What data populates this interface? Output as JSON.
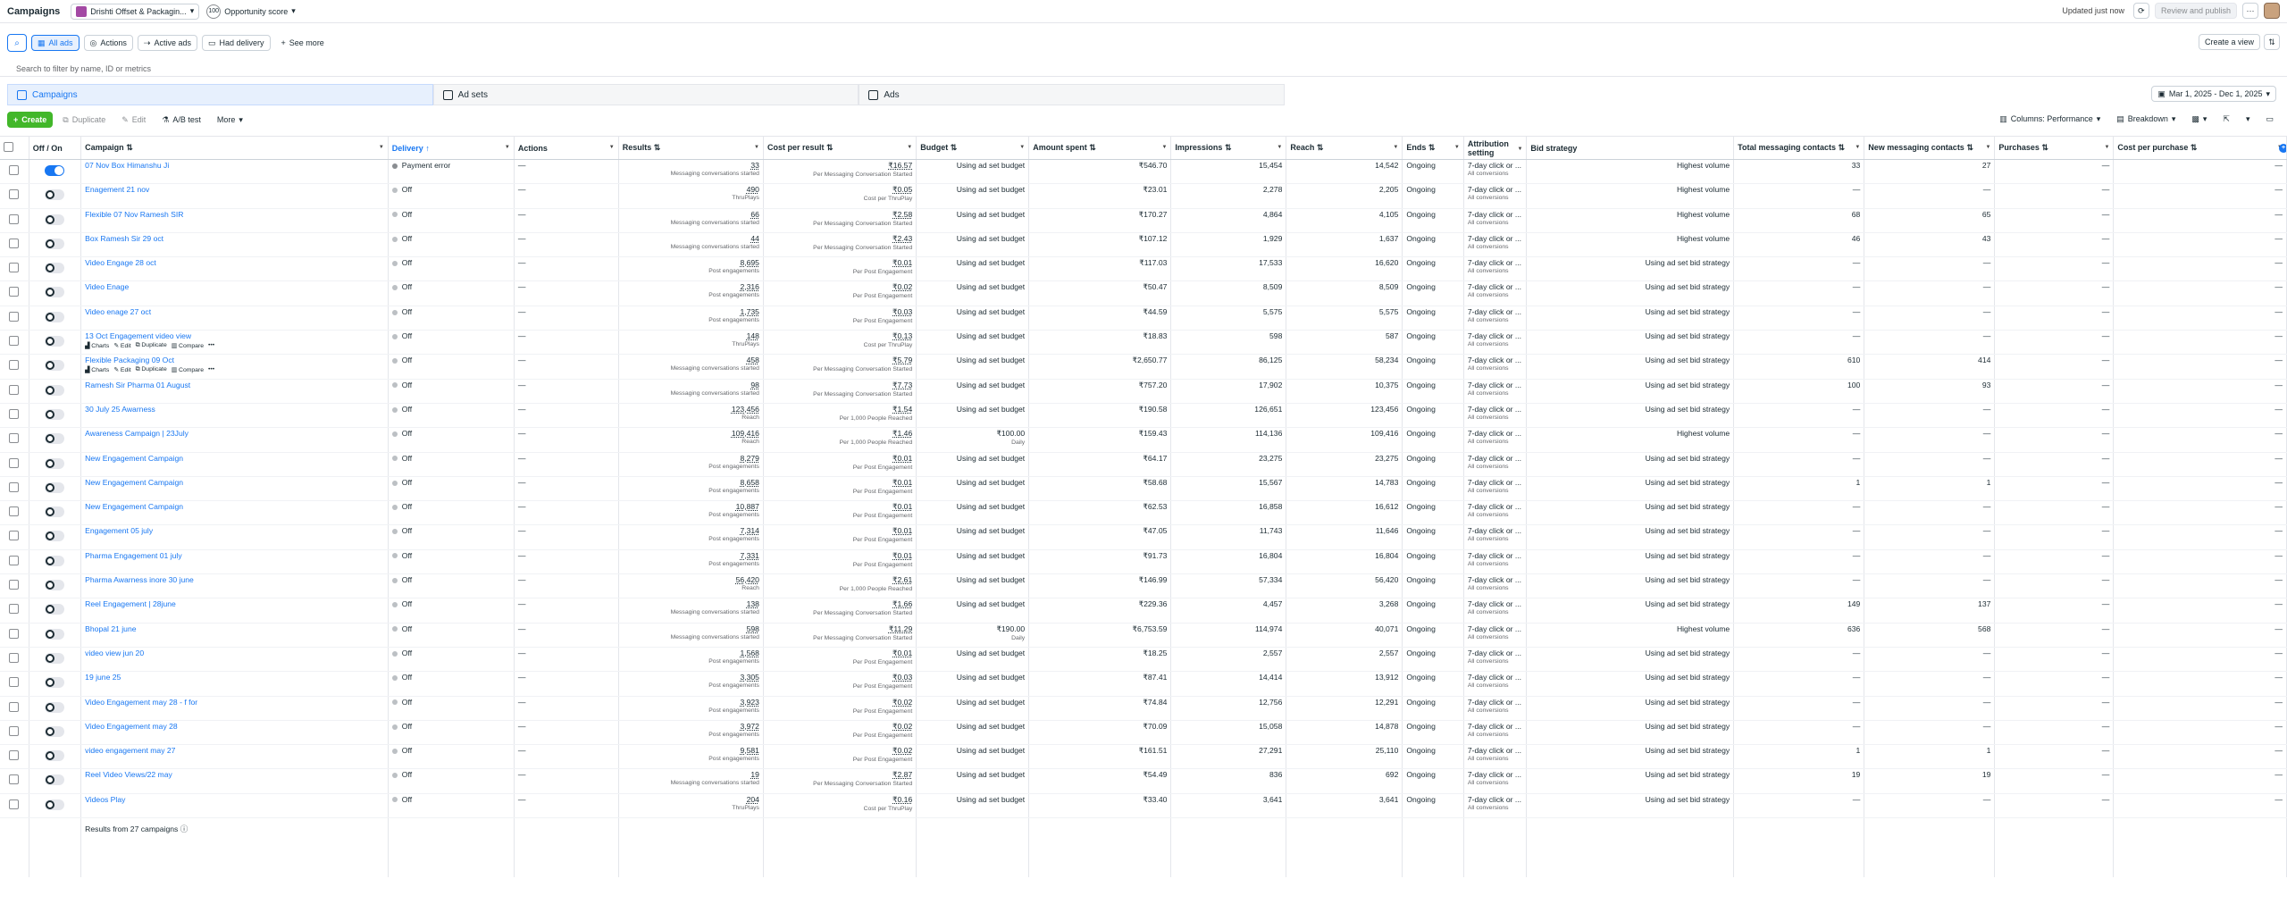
{
  "header": {
    "title": "Campaigns",
    "account_name": "Drishti Offset & Packagin...",
    "opportunity_score_value": "100",
    "opportunity_score_label": "Opportunity score",
    "updated": "Updated just now",
    "review_publish": "Review and publish",
    "more": "···"
  },
  "filters": {
    "all_ads": "All ads",
    "actions": "Actions",
    "active_ads": "Active ads",
    "had_delivery": "Had delivery",
    "see_more": "See more",
    "create_view": "Create a view",
    "search_placeholder": "Search to filter by name, ID or metrics"
  },
  "tabs": [
    {
      "label": "Campaigns"
    },
    {
      "label": "Ad sets"
    },
    {
      "label": "Ads"
    }
  ],
  "date_range": "Mar 1, 2025 - Dec 1, 2025",
  "toolbar": {
    "create": "Create",
    "duplicate": "Duplicate",
    "edit": "Edit",
    "ab_test": "A/B test",
    "more": "More",
    "columns": "Columns: Performance",
    "breakdown": "Breakdown"
  },
  "columns": [
    "Off / On",
    "Campaign",
    "Delivery",
    "Actions",
    "Results",
    "Cost per result",
    "Budget",
    "Amount spent",
    "Impressions",
    "Reach",
    "Ends",
    "Attribution setting",
    "Bid strategy",
    "Total messaging contacts",
    "New messaging contacts",
    "Purchases",
    "Cost per purchase"
  ],
  "row_actions": [
    "Charts",
    "Edit",
    "Duplicate",
    "Compare"
  ],
  "rows": [
    {
      "on": true,
      "name": "07 Nov Box Himanshu Ji",
      "delivery": "Payment error",
      "actions": "—",
      "results": "33",
      "results_sub": "Messaging conversations started",
      "cpr": "₹16.57",
      "cpr_sub": "Per Messaging Conversation Started",
      "budget": "Using ad set budget",
      "budget_sub": "",
      "spent": "₹546.70",
      "impr": "15,454",
      "reach": "14,542",
      "ends": "Ongoing",
      "attr": "7-day click or ...",
      "attr_sub": "All conversions",
      "bid": "Highest volume",
      "total_msg": "33",
      "new_msg": "27",
      "purchases": "—",
      "cpp": "—"
    },
    {
      "on": false,
      "name": "Enagement 21 nov",
      "delivery": "Off",
      "actions": "—",
      "results": "490",
      "results_sub": "ThruPlays",
      "cpr": "₹0.05",
      "cpr_sub": "Cost per ThruPlay",
      "budget": "Using ad set budget",
      "budget_sub": "",
      "spent": "₹23.01",
      "impr": "2,278",
      "reach": "2,205",
      "ends": "Ongoing",
      "attr": "7-day click or ...",
      "attr_sub": "All conversions",
      "bid": "Highest volume",
      "total_msg": "—",
      "new_msg": "—",
      "purchases": "—",
      "cpp": "—"
    },
    {
      "on": false,
      "name": "Flexible 07 Nov Ramesh SIR",
      "delivery": "Off",
      "actions": "—",
      "results": "66",
      "results_sub": "Messaging conversations started",
      "cpr": "₹2.58",
      "cpr_sub": "Per Messaging Conversation Started",
      "budget": "Using ad set budget",
      "budget_sub": "",
      "spent": "₹170.27",
      "impr": "4,864",
      "reach": "4,105",
      "ends": "Ongoing",
      "attr": "7-day click or ...",
      "attr_sub": "All conversions",
      "bid": "Highest volume",
      "total_msg": "68",
      "new_msg": "65",
      "purchases": "—",
      "cpp": "—"
    },
    {
      "on": false,
      "name": "Box Ramesh Sir 29 oct",
      "delivery": "Off",
      "actions": "—",
      "results": "44",
      "results_sub": "Messaging conversations started",
      "cpr": "₹2.43",
      "cpr_sub": "Per Messaging Conversation Started",
      "budget": "Using ad set budget",
      "budget_sub": "",
      "spent": "₹107.12",
      "impr": "1,929",
      "reach": "1,637",
      "ends": "Ongoing",
      "attr": "7-day click or ...",
      "attr_sub": "All conversions",
      "bid": "Highest volume",
      "total_msg": "46",
      "new_msg": "43",
      "purchases": "—",
      "cpp": "—"
    },
    {
      "on": false,
      "name": "Video Engage 28 oct",
      "delivery": "Off",
      "actions": "—",
      "results": "8,695",
      "results_sub": "Post engagements",
      "cpr": "₹0.01",
      "cpr_sub": "Per Post Engagement",
      "budget": "Using ad set budget",
      "budget_sub": "",
      "spent": "₹117.03",
      "impr": "17,533",
      "reach": "16,620",
      "ends": "Ongoing",
      "attr": "7-day click or ...",
      "attr_sub": "All conversions",
      "bid": "Using ad set bid strategy",
      "total_msg": "—",
      "new_msg": "—",
      "purchases": "—",
      "cpp": "—"
    },
    {
      "on": false,
      "name": "Video Enage",
      "delivery": "Off",
      "actions": "—",
      "results": "2,316",
      "results_sub": "Post engagements",
      "cpr": "₹0.02",
      "cpr_sub": "Per Post Engagement",
      "budget": "Using ad set budget",
      "budget_sub": "",
      "spent": "₹50.47",
      "impr": "8,509",
      "reach": "8,509",
      "ends": "Ongoing",
      "attr": "7-day click or ...",
      "attr_sub": "All conversions",
      "bid": "Using ad set bid strategy",
      "total_msg": "—",
      "new_msg": "—",
      "purchases": "—",
      "cpp": "—"
    },
    {
      "on": false,
      "name": "Video enage 27 oct",
      "delivery": "Off",
      "actions": "—",
      "results": "1,735",
      "results_sub": "Post engagements",
      "cpr": "₹0.03",
      "cpr_sub": "Per Post Engagement",
      "budget": "Using ad set budget",
      "budget_sub": "",
      "spent": "₹44.59",
      "impr": "5,575",
      "reach": "5,575",
      "ends": "Ongoing",
      "attr": "7-day click or ...",
      "attr_sub": "All conversions",
      "bid": "Using ad set bid strategy",
      "total_msg": "—",
      "new_msg": "—",
      "purchases": "—",
      "cpp": "—"
    },
    {
      "on": false,
      "name": "13 Oct Engagement video view",
      "delivery": "Off",
      "actions": "—",
      "results": "148",
      "results_sub": "ThruPlays",
      "cpr": "₹0.13",
      "cpr_sub": "Cost per ThruPlay",
      "budget": "Using ad set budget",
      "budget_sub": "",
      "spent": "₹18.83",
      "impr": "598",
      "reach": "587",
      "ends": "Ongoing",
      "attr": "7-day click or ...",
      "attr_sub": "All conversions",
      "bid": "Using ad set bid strategy",
      "total_msg": "—",
      "new_msg": "—",
      "purchases": "—",
      "cpp": "—",
      "show_actions": true
    },
    {
      "on": false,
      "name": "Flexible Packaging 09 Oct",
      "delivery": "Off",
      "actions": "—",
      "results": "458",
      "results_sub": "Messaging conversations started",
      "cpr": "₹5.79",
      "cpr_sub": "Per Messaging Conversation Started",
      "budget": "Using ad set budget",
      "budget_sub": "",
      "spent": "₹2,650.77",
      "impr": "86,125",
      "reach": "58,234",
      "ends": "Ongoing",
      "attr": "7-day click or ...",
      "attr_sub": "All conversions",
      "bid": "Using ad set bid strategy",
      "total_msg": "610",
      "new_msg": "414",
      "purchases": "—",
      "cpp": "—",
      "show_actions": true
    },
    {
      "on": false,
      "name": "Ramesh Sir Pharma 01 August",
      "delivery": "Off",
      "actions": "—",
      "results": "98",
      "results_sub": "Messaging conversations started",
      "cpr": "₹7.73",
      "cpr_sub": "Per Messaging Conversation Started",
      "budget": "Using ad set budget",
      "budget_sub": "",
      "spent": "₹757.20",
      "impr": "17,902",
      "reach": "10,375",
      "ends": "Ongoing",
      "attr": "7-day click or ...",
      "attr_sub": "All conversions",
      "bid": "Using ad set bid strategy",
      "total_msg": "100",
      "new_msg": "93",
      "purchases": "—",
      "cpp": "—"
    },
    {
      "on": false,
      "name": "30 July 25 Awarness",
      "delivery": "Off",
      "actions": "—",
      "results": "123,456",
      "results_sub": "Reach",
      "cpr": "₹1.54",
      "cpr_sub": "Per 1,000 People Reached",
      "budget": "Using ad set budget",
      "budget_sub": "",
      "spent": "₹190.58",
      "impr": "126,651",
      "reach": "123,456",
      "ends": "Ongoing",
      "attr": "7-day click or ...",
      "attr_sub": "All conversions",
      "bid": "Using ad set bid strategy",
      "total_msg": "—",
      "new_msg": "—",
      "purchases": "—",
      "cpp": "—"
    },
    {
      "on": false,
      "name": "Awareness Campaign | 23July",
      "delivery": "Off",
      "actions": "—",
      "results": "109,416",
      "results_sub": "Reach",
      "cpr": "₹1.46",
      "cpr_sub": "Per 1,000 People Reached",
      "budget": "₹100.00",
      "budget_sub": "Daily",
      "spent": "₹159.43",
      "impr": "114,136",
      "reach": "109,416",
      "ends": "Ongoing",
      "attr": "7-day click or ...",
      "attr_sub": "All conversions",
      "bid": "Highest volume",
      "total_msg": "—",
      "new_msg": "—",
      "purchases": "—",
      "cpp": "—"
    },
    {
      "on": false,
      "name": "New Engagement Campaign",
      "delivery": "Off",
      "actions": "—",
      "results": "8,279",
      "results_sub": "Post engagements",
      "cpr": "₹0.01",
      "cpr_sub": "Per Post Engagement",
      "budget": "Using ad set budget",
      "budget_sub": "",
      "spent": "₹64.17",
      "impr": "23,275",
      "reach": "23,275",
      "ends": "Ongoing",
      "attr": "7-day click or ...",
      "attr_sub": "All conversions",
      "bid": "Using ad set bid strategy",
      "total_msg": "—",
      "new_msg": "—",
      "purchases": "—",
      "cpp": "—"
    },
    {
      "on": false,
      "name": "New Engagement Campaign",
      "delivery": "Off",
      "actions": "—",
      "results": "8,658",
      "results_sub": "Post engagements",
      "cpr": "₹0.01",
      "cpr_sub": "Per Post Engagement",
      "budget": "Using ad set budget",
      "budget_sub": "",
      "spent": "₹58.68",
      "impr": "15,567",
      "reach": "14,783",
      "ends": "Ongoing",
      "attr": "7-day click or ...",
      "attr_sub": "All conversions",
      "bid": "Using ad set bid strategy",
      "total_msg": "1",
      "new_msg": "1",
      "purchases": "—",
      "cpp": "—"
    },
    {
      "on": false,
      "name": "New Engagement Campaign",
      "delivery": "Off",
      "actions": "—",
      "results": "10,887",
      "results_sub": "Post engagements",
      "cpr": "₹0.01",
      "cpr_sub": "Per Post Engagement",
      "budget": "Using ad set budget",
      "budget_sub": "",
      "spent": "₹62.53",
      "impr": "16,858",
      "reach": "16,612",
      "ends": "Ongoing",
      "attr": "7-day click or ...",
      "attr_sub": "All conversions",
      "bid": "Using ad set bid strategy",
      "total_msg": "—",
      "new_msg": "—",
      "purchases": "—",
      "cpp": "—"
    },
    {
      "on": false,
      "name": "Engagement 05 july",
      "delivery": "Off",
      "actions": "—",
      "results": "7,314",
      "results_sub": "Post engagements",
      "cpr": "₹0.01",
      "cpr_sub": "Per Post Engagement",
      "budget": "Using ad set budget",
      "budget_sub": "",
      "spent": "₹47.05",
      "impr": "11,743",
      "reach": "11,646",
      "ends": "Ongoing",
      "attr": "7-day click or ...",
      "attr_sub": "All conversions",
      "bid": "Using ad set bid strategy",
      "total_msg": "—",
      "new_msg": "—",
      "purchases": "—",
      "cpp": "—"
    },
    {
      "on": false,
      "name": "Pharma Engagement 01 july",
      "delivery": "Off",
      "actions": "—",
      "results": "7,331",
      "results_sub": "Post engagements",
      "cpr": "₹0.01",
      "cpr_sub": "Per Post Engagement",
      "budget": "Using ad set budget",
      "budget_sub": "",
      "spent": "₹91.73",
      "impr": "16,804",
      "reach": "16,804",
      "ends": "Ongoing",
      "attr": "7-day click or ...",
      "attr_sub": "All conversions",
      "bid": "Using ad set bid strategy",
      "total_msg": "—",
      "new_msg": "—",
      "purchases": "—",
      "cpp": "—"
    },
    {
      "on": false,
      "name": "Pharma Awarness inore 30 june",
      "delivery": "Off",
      "actions": "—",
      "results": "56,420",
      "results_sub": "Reach",
      "cpr": "₹2.61",
      "cpr_sub": "Per 1,000 People Reached",
      "budget": "Using ad set budget",
      "budget_sub": "",
      "spent": "₹146.99",
      "impr": "57,334",
      "reach": "56,420",
      "ends": "Ongoing",
      "attr": "7-day click or ...",
      "attr_sub": "All conversions",
      "bid": "Using ad set bid strategy",
      "total_msg": "—",
      "new_msg": "—",
      "purchases": "—",
      "cpp": "—"
    },
    {
      "on": false,
      "name": "Reel Engagement | 28june",
      "delivery": "Off",
      "actions": "—",
      "results": "138",
      "results_sub": "Messaging conversations started",
      "cpr": "₹1.66",
      "cpr_sub": "Per Messaging Conversation Started",
      "budget": "Using ad set budget",
      "budget_sub": "",
      "spent": "₹229.36",
      "impr": "4,457",
      "reach": "3,268",
      "ends": "Ongoing",
      "attr": "7-day click or ...",
      "attr_sub": "All conversions",
      "bid": "Using ad set bid strategy",
      "total_msg": "149",
      "new_msg": "137",
      "purchases": "—",
      "cpp": "—"
    },
    {
      "on": false,
      "name": "Bhopal 21 june",
      "delivery": "Off",
      "actions": "—",
      "results": "598",
      "results_sub": "Messaging conversations started",
      "cpr": "₹11.29",
      "cpr_sub": "Per Messaging Conversation Started",
      "budget": "₹190.00",
      "budget_sub": "Daily",
      "spent": "₹6,753.59",
      "impr": "114,974",
      "reach": "40,071",
      "ends": "Ongoing",
      "attr": "7-day click or ...",
      "attr_sub": "All conversions",
      "bid": "Highest volume",
      "total_msg": "636",
      "new_msg": "568",
      "purchases": "—",
      "cpp": "—"
    },
    {
      "on": false,
      "name": "video view jun 20",
      "delivery": "Off",
      "actions": "—",
      "results": "1,568",
      "results_sub": "Post engagements",
      "cpr": "₹0.01",
      "cpr_sub": "Per Post Engagement",
      "budget": "Using ad set budget",
      "budget_sub": "",
      "spent": "₹18.25",
      "impr": "2,557",
      "reach": "2,557",
      "ends": "Ongoing",
      "attr": "7-day click or ...",
      "attr_sub": "All conversions",
      "bid": "Using ad set bid strategy",
      "total_msg": "—",
      "new_msg": "—",
      "purchases": "—",
      "cpp": "—"
    },
    {
      "on": false,
      "name": "19 june 25",
      "delivery": "Off",
      "actions": "—",
      "results": "3,305",
      "results_sub": "Post engagements",
      "cpr": "₹0.03",
      "cpr_sub": "Per Post Engagement",
      "budget": "Using ad set budget",
      "budget_sub": "",
      "spent": "₹87.41",
      "impr": "14,414",
      "reach": "13,912",
      "ends": "Ongoing",
      "attr": "7-day click or ...",
      "attr_sub": "All conversions",
      "bid": "Using ad set bid strategy",
      "total_msg": "—",
      "new_msg": "—",
      "purchases": "—",
      "cpp": "—"
    },
    {
      "on": false,
      "name": "Video Engagement may 28 - f for",
      "delivery": "Off",
      "actions": "—",
      "results": "3,923",
      "results_sub": "Post engagements",
      "cpr": "₹0.02",
      "cpr_sub": "Per Post Engagement",
      "budget": "Using ad set budget",
      "budget_sub": "",
      "spent": "₹74.84",
      "impr": "12,756",
      "reach": "12,291",
      "ends": "Ongoing",
      "attr": "7-day click or ...",
      "attr_sub": "All conversions",
      "bid": "Using ad set bid strategy",
      "total_msg": "—",
      "new_msg": "—",
      "purchases": "—",
      "cpp": "—"
    },
    {
      "on": false,
      "name": "Video Engagement may 28",
      "delivery": "Off",
      "actions": "—",
      "results": "3,972",
      "results_sub": "Post engagements",
      "cpr": "₹0.02",
      "cpr_sub": "Per Post Engagement",
      "budget": "Using ad set budget",
      "budget_sub": "",
      "spent": "₹70.09",
      "impr": "15,058",
      "reach": "14,878",
      "ends": "Ongoing",
      "attr": "7-day click or ...",
      "attr_sub": "All conversions",
      "bid": "Using ad set bid strategy",
      "total_msg": "—",
      "new_msg": "—",
      "purchases": "—",
      "cpp": "—"
    },
    {
      "on": false,
      "name": "video engagement may 27",
      "delivery": "Off",
      "actions": "—",
      "results": "9,581",
      "results_sub": "Post engagements",
      "cpr": "₹0.02",
      "cpr_sub": "Per Post Engagement",
      "budget": "Using ad set budget",
      "budget_sub": "",
      "spent": "₹161.51",
      "impr": "27,291",
      "reach": "25,110",
      "ends": "Ongoing",
      "attr": "7-day click or ...",
      "attr_sub": "All conversions",
      "bid": "Using ad set bid strategy",
      "total_msg": "1",
      "new_msg": "1",
      "purchases": "—",
      "cpp": "—"
    },
    {
      "on": false,
      "name": "Reel Video Views/22 may",
      "delivery": "Off",
      "actions": "—",
      "results": "19",
      "results_sub": "Messaging conversations started",
      "cpr": "₹2.87",
      "cpr_sub": "Per Messaging Conversation Started",
      "budget": "Using ad set budget",
      "budget_sub": "",
      "spent": "₹54.49",
      "impr": "836",
      "reach": "692",
      "ends": "Ongoing",
      "attr": "7-day click or ...",
      "attr_sub": "All conversions",
      "bid": "Using ad set bid strategy",
      "total_msg": "19",
      "new_msg": "19",
      "purchases": "—",
      "cpp": "—"
    },
    {
      "on": false,
      "name": "Videos Play",
      "delivery": "Off",
      "actions": "—",
      "results": "204",
      "results_sub": "ThruPlays",
      "cpr": "₹0.16",
      "cpr_sub": "Cost per ThruPlay",
      "budget": "Using ad set budget",
      "budget_sub": "",
      "spent": "₹33.40",
      "impr": "3,641",
      "reach": "3,641",
      "ends": "Ongoing",
      "attr": "7-day click or ...",
      "attr_sub": "All conversions",
      "bid": "Using ad set bid strategy",
      "total_msg": "—",
      "new_msg": "—",
      "purchases": "—",
      "cpp": "—"
    }
  ],
  "footer": {
    "results_text": "Results from 27 campaigns"
  },
  "colors": {
    "brand": "#1877f2",
    "create": "#42b72a"
  }
}
